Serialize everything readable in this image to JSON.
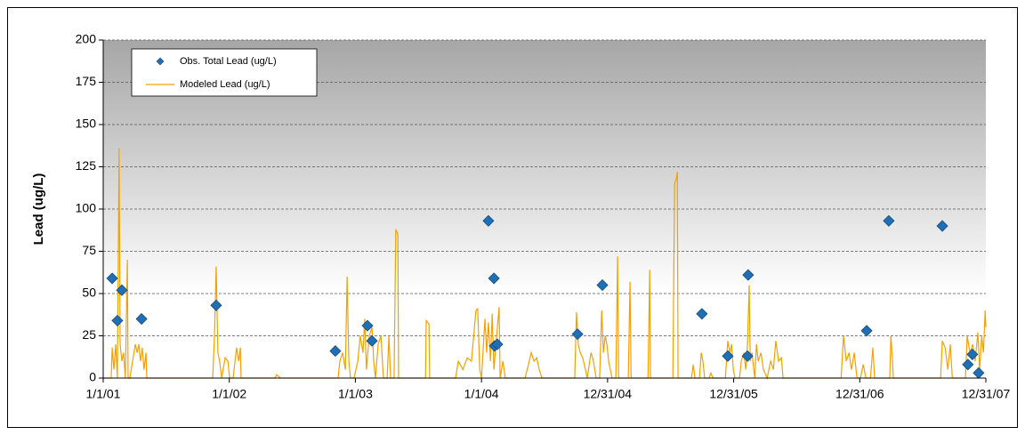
{
  "chart_data": {
    "type": "combo",
    "y_label": "Lead (ug/L)",
    "ylim": [
      0,
      200
    ],
    "yticks": [
      0,
      25,
      50,
      75,
      100,
      125,
      150,
      175,
      200
    ],
    "xlim": [
      0,
      2555
    ],
    "xticks": [
      {
        "value": 0,
        "label": "1/1/01"
      },
      {
        "value": 365,
        "label": "1/1/02"
      },
      {
        "value": 730,
        "label": "1/1/03"
      },
      {
        "value": 1095,
        "label": "1/1/04"
      },
      {
        "value": 1460,
        "label": "12/31/04"
      },
      {
        "value": 1825,
        "label": "12/31/05"
      },
      {
        "value": 2190,
        "label": "12/31/06"
      },
      {
        "value": 2555,
        "label": "12/31/07"
      }
    ],
    "grid": true,
    "legend": "upper left",
    "series": [
      {
        "name": "Obs. Total Lead (ug/L)",
        "type": "scatter",
        "color": "#1f6fb5",
        "x": [
          26,
          41,
          54,
          111,
          327,
          672,
          765,
          778,
          1115,
          1131,
          1133,
          1141,
          1373,
          1445,
          1733,
          1808,
          1865,
          1867,
          2210,
          2274,
          2429,
          2503,
          2516,
          2534
        ],
        "values": [
          59,
          34,
          52,
          35,
          43,
          16,
          31,
          22,
          93,
          59,
          19,
          20,
          26,
          55,
          38,
          13,
          13,
          61,
          28,
          93,
          90,
          8,
          14,
          3
        ]
      },
      {
        "name": "Modeled Lead (ug/L)",
        "type": "line",
        "color": "#f5a000",
        "x": [
          0,
          23,
          26,
          31,
          36,
          41,
          46,
          49,
          54,
          59,
          64,
          70,
          72,
          77,
          93,
          98,
          103,
          108,
          113,
          118,
          124,
          126,
          317,
          322,
          327,
          332,
          337,
          343,
          353,
          361,
          366,
          376,
          386,
          392,
          397,
          399,
          497,
          502,
          513,
          680,
          685,
          693,
          701,
          706,
          711,
          716,
          726,
          737,
          744,
          752,
          757,
          762,
          770,
          778,
          783,
          788,
          796,
          804,
          811,
          822,
          827,
          832,
          842,
          847,
          853,
          855,
          933,
          935,
          943,
          945,
          1020,
          1028,
          1041,
          1054,
          1066,
          1079,
          1084,
          1090,
          1095,
          1105,
          1110,
          1115,
          1121,
          1126,
          1131,
          1139,
          1146,
          1149,
          1157,
          1164,
          1221,
          1231,
          1239,
          1247,
          1255,
          1262,
          1270,
          1365,
          1370,
          1375,
          1381,
          1388,
          1396,
          1401,
          1412,
          1419,
          1427,
          1437,
          1443,
          1448,
          1453,
          1458,
          1463,
          1468,
          1473,
          1484,
          1489,
          1492,
          1520,
          1525,
          1528,
          1577,
          1582,
          1584,
          1649,
          1654,
          1659,
          1662,
          1664,
          1703,
          1708,
          1713,
          1726,
          1731,
          1736,
          1741,
          1754,
          1759,
          1765,
          1801,
          1808,
          1814,
          1819,
          1824,
          1829,
          1842,
          1847,
          1855,
          1860,
          1865,
          1870,
          1873,
          1878,
          1886,
          1891,
          1896,
          1904,
          1911,
          1922,
          1932,
          1940,
          1947,
          1955,
          1963,
          1968,
          2136,
          2143,
          2151,
          2159,
          2166,
          2174,
          2182,
          2192,
          2200,
          2208,
          2221,
          2228,
          2233,
          2277,
          2280,
          2285,
          2287,
          2424,
          2429,
          2437,
          2445,
          2452,
          2458,
          2496,
          2501,
          2509,
          2517,
          2524,
          2532,
          2537,
          2543,
          2548,
          2553,
          2555
        ],
        "values": [
          0,
          0,
          18,
          5,
          20,
          0,
          136,
          20,
          10,
          15,
          0,
          70,
          0,
          0,
          20,
          15,
          20,
          10,
          18,
          5,
          15,
          0,
          0,
          25,
          66,
          15,
          10,
          0,
          12,
          10,
          0,
          0,
          18,
          10,
          18,
          0,
          0,
          2,
          0,
          0,
          10,
          15,
          5,
          60,
          10,
          0,
          0,
          10,
          25,
          15,
          35,
          5,
          25,
          30,
          10,
          0,
          20,
          25,
          0,
          0,
          25,
          0,
          0,
          88,
          85,
          0,
          0,
          34,
          32,
          0,
          0,
          10,
          5,
          12,
          10,
          40,
          41,
          5,
          0,
          35,
          15,
          33,
          10,
          38,
          5,
          25,
          42,
          0,
          10,
          0,
          0,
          8,
          15,
          10,
          12,
          5,
          0,
          0,
          39,
          20,
          15,
          12,
          5,
          0,
          15,
          10,
          0,
          0,
          40,
          15,
          25,
          20,
          10,
          5,
          0,
          0,
          72,
          0,
          0,
          57,
          0,
          0,
          64,
          0,
          0,
          115,
          118,
          122,
          0,
          0,
          8,
          0,
          0,
          15,
          10,
          0,
          0,
          3,
          0,
          0,
          22,
          15,
          20,
          5,
          0,
          0,
          10,
          15,
          5,
          20,
          55,
          10,
          15,
          0,
          20,
          10,
          15,
          5,
          0,
          10,
          5,
          22,
          10,
          12,
          0,
          0,
          25,
          10,
          15,
          5,
          15,
          0,
          0,
          8,
          0,
          0,
          18,
          0,
          0,
          25,
          10,
          0,
          0,
          22,
          18,
          5,
          20,
          0,
          0,
          25,
          15,
          20,
          10,
          27,
          5,
          25,
          15,
          40,
          30
        ]
      }
    ]
  }
}
